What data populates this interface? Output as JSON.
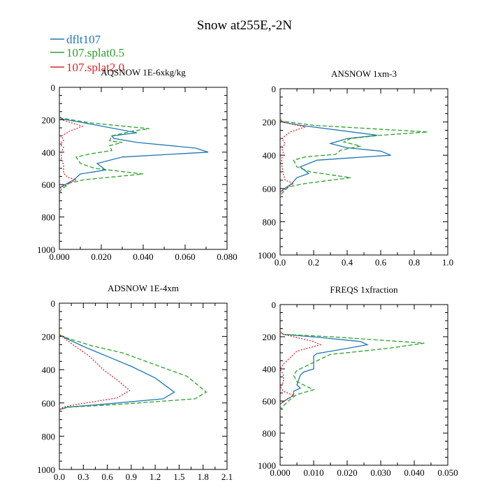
{
  "figure_title": "Snow at255E,-2N",
  "legend": [
    {
      "label": "dflt107",
      "color": "#1f77b4",
      "dash": "solid"
    },
    {
      "label": "107.splat0.5",
      "color": "#2ca02c",
      "dash": "dashed"
    },
    {
      "label": "107.splat2.0",
      "color": "#d62728",
      "dash": "dotted"
    }
  ],
  "chart_data": [
    {
      "type": "line",
      "title": "AQSNOW  1E-6xkg/kg",
      "xlim": [
        0,
        0.08
      ],
      "ylim": [
        1000,
        0
      ],
      "xticks": [
        0,
        0.02,
        0.04,
        0.06,
        0.08
      ],
      "xtick_labels": [
        "0.000",
        "0.020",
        "0.040",
        "0.060",
        "0.080"
      ],
      "yticks": [
        0,
        200,
        400,
        600,
        800,
        1000
      ],
      "ytick_labels": [
        "0",
        "200",
        "400",
        "600",
        "800",
        "1000"
      ],
      "series": [
        {
          "name": "dflt107",
          "points": [
            [
              0,
              180
            ],
            [
              0.001,
              195
            ],
            [
              0.01,
              215
            ],
            [
              0.037,
              280
            ],
            [
              0.025,
              300
            ],
            [
              0.026,
              315
            ],
            [
              0.037,
              340
            ],
            [
              0.065,
              375
            ],
            [
              0.071,
              400
            ],
            [
              0.03,
              430
            ],
            [
              0.018,
              470
            ],
            [
              0.022,
              510
            ],
            [
              0.01,
              535
            ],
            [
              0.007,
              570
            ],
            [
              0.002,
              605
            ],
            [
              0,
              620
            ]
          ]
        },
        {
          "name": "107.splat0.5",
          "points": [
            [
              0,
              180
            ],
            [
              0.001,
              190
            ],
            [
              0.015,
              220
            ],
            [
              0.043,
              255
            ],
            [
              0.035,
              270
            ],
            [
              0.025,
              300
            ],
            [
              0.024,
              330
            ],
            [
              0.03,
              340
            ],
            [
              0.024,
              360
            ],
            [
              0.025,
              390
            ],
            [
              0.015,
              410
            ],
            [
              0.008,
              430
            ],
            [
              0.01,
              470
            ],
            [
              0.017,
              500
            ],
            [
              0.04,
              535
            ],
            [
              0.012,
              570
            ],
            [
              0.005,
              590
            ],
            [
              0.001,
              630
            ],
            [
              0,
              650
            ]
          ]
        },
        {
          "name": "107.splat2.0",
          "points": [
            [
              0,
              180
            ],
            [
              0.001,
              200
            ],
            [
              0.011,
              240
            ],
            [
              0.005,
              270
            ],
            [
              0.001,
              300
            ],
            [
              0.002,
              330
            ],
            [
              0,
              350
            ],
            [
              0.002,
              370
            ],
            [
              0.001,
              400
            ],
            [
              0.001,
              440
            ],
            [
              0.002,
              480
            ],
            [
              0.002,
              530
            ],
            [
              0.004,
              555
            ],
            [
              0.008,
              570
            ],
            [
              0.005,
              590
            ],
            [
              0.002,
              610
            ],
            [
              0,
              625
            ]
          ]
        }
      ]
    },
    {
      "type": "line",
      "title": "ANSNOW  1xm-3",
      "xlim": [
        0,
        1.0
      ],
      "ylim": [
        1000,
        0
      ],
      "xticks": [
        0,
        0.2,
        0.4,
        0.6,
        0.8,
        1.0
      ],
      "xtick_labels": [
        "0.0",
        "0.2",
        "0.4",
        "0.6",
        "0.8",
        "1.0"
      ],
      "yticks": [
        0,
        200,
        400,
        600,
        800,
        1000
      ],
      "ytick_labels": [
        "0",
        "200",
        "400",
        "600",
        "800",
        "1000"
      ],
      "series": [
        {
          "name": "dflt107",
          "points": [
            [
              0,
              180
            ],
            [
              0.01,
              200
            ],
            [
              0.12,
              220
            ],
            [
              0.58,
              280
            ],
            [
              0.4,
              300
            ],
            [
              0.3,
              330
            ],
            [
              0.4,
              355
            ],
            [
              0.6,
              375
            ],
            [
              0.66,
              400
            ],
            [
              0.22,
              430
            ],
            [
              0.12,
              470
            ],
            [
              0.17,
              510
            ],
            [
              0.1,
              535
            ],
            [
              0.07,
              570
            ],
            [
              0.02,
              605
            ],
            [
              0,
              620
            ]
          ]
        },
        {
          "name": "107.splat0.5",
          "points": [
            [
              0,
              180
            ],
            [
              0.01,
              195
            ],
            [
              0.2,
              220
            ],
            [
              0.88,
              260
            ],
            [
              0.6,
              280
            ],
            [
              0.42,
              300
            ],
            [
              0.38,
              320
            ],
            [
              0.48,
              345
            ],
            [
              0.36,
              370
            ],
            [
              0.33,
              395
            ],
            [
              0.15,
              410
            ],
            [
              0.08,
              430
            ],
            [
              0.1,
              470
            ],
            [
              0.18,
              500
            ],
            [
              0.42,
              535
            ],
            [
              0.15,
              570
            ],
            [
              0.05,
              590
            ],
            [
              0.01,
              630
            ],
            [
              0,
              650
            ]
          ]
        },
        {
          "name": "107.splat2.0",
          "points": [
            [
              0,
              180
            ],
            [
              0.01,
              200
            ],
            [
              0.15,
              230
            ],
            [
              0.06,
              260
            ],
            [
              0.01,
              300
            ],
            [
              0.03,
              330
            ],
            [
              0.01,
              360
            ],
            [
              0.02,
              390
            ],
            [
              0.01,
              420
            ],
            [
              0.01,
              460
            ],
            [
              0.02,
              520
            ],
            [
              0.03,
              550
            ],
            [
              0.08,
              570
            ],
            [
              0.05,
              590
            ],
            [
              0.02,
              610
            ],
            [
              0,
              625
            ]
          ]
        }
      ]
    },
    {
      "type": "line",
      "title": "ADSNOW  1E-4xm",
      "xlim": [
        0,
        2.1
      ],
      "ylim": [
        1000,
        0
      ],
      "xticks": [
        0,
        0.3,
        0.6,
        0.9,
        1.2,
        1.5,
        1.8,
        2.1
      ],
      "xtick_labels": [
        "0.0",
        "0.3",
        "0.6",
        "0.9",
        "1.2",
        "1.5",
        "1.8",
        "2.1"
      ],
      "yticks": [
        0,
        200,
        400,
        600,
        800,
        1000
      ],
      "ytick_labels": [
        "0",
        "200",
        "400",
        "600",
        "800",
        "1000"
      ],
      "series": [
        {
          "name": "dflt107",
          "points": [
            [
              0,
              190
            ],
            [
              0.08,
              210
            ],
            [
              0.3,
              260
            ],
            [
              0.6,
              320
            ],
            [
              0.9,
              380
            ],
            [
              1.2,
              450
            ],
            [
              1.44,
              535
            ],
            [
              1.3,
              575
            ],
            [
              0.5,
              610
            ],
            [
              0.1,
              625
            ],
            [
              0,
              640
            ]
          ]
        },
        {
          "name": "107.splat0.5",
          "points": [
            [
              0,
              190
            ],
            [
              0.1,
              210
            ],
            [
              0.4,
              255
            ],
            [
              0.8,
              300
            ],
            [
              1.2,
              370
            ],
            [
              1.6,
              440
            ],
            [
              1.84,
              535
            ],
            [
              1.7,
              575
            ],
            [
              0.7,
              610
            ],
            [
              0.12,
              625
            ],
            [
              0,
              640
            ]
          ]
        },
        {
          "name": "107.splat2.0",
          "points": [
            [
              0,
              190
            ],
            [
              0.06,
              210
            ],
            [
              0.2,
              260
            ],
            [
              0.38,
              320
            ],
            [
              0.55,
              400
            ],
            [
              0.72,
              460
            ],
            [
              0.88,
              525
            ],
            [
              0.72,
              570
            ],
            [
              0.2,
              610
            ],
            [
              0.05,
              625
            ],
            [
              0,
              640
            ]
          ]
        }
      ]
    },
    {
      "type": "line",
      "title": "FREQS  1xfraction",
      "xlim": [
        0,
        0.05
      ],
      "ylim": [
        1000,
        0
      ],
      "xticks": [
        0,
        0.01,
        0.02,
        0.03,
        0.04,
        0.05
      ],
      "xtick_labels": [
        "0.000",
        "0.010",
        "0.020",
        "0.030",
        "0.040",
        "0.050"
      ],
      "yticks": [
        0,
        200,
        400,
        600,
        800,
        1000
      ],
      "ytick_labels": [
        "0",
        "200",
        "400",
        "600",
        "800",
        "1000"
      ],
      "series": [
        {
          "name": "dflt107",
          "points": [
            [
              0,
              170
            ],
            [
              0.001,
              185
            ],
            [
              0.012,
              205
            ],
            [
              0.024,
              230
            ],
            [
              0.026,
              250
            ],
            [
              0.018,
              280
            ],
            [
              0.011,
              305
            ],
            [
              0.01,
              320
            ],
            [
              0.01,
              350
            ],
            [
              0.01,
              400
            ],
            [
              0.007,
              420
            ],
            [
              0.006,
              440
            ],
            [
              0.005,
              500
            ],
            [
              0.006,
              520
            ],
            [
              0.004,
              540
            ],
            [
              0.004,
              565
            ],
            [
              0.002,
              590
            ],
            [
              0,
              620
            ]
          ]
        },
        {
          "name": "107.splat0.5",
          "points": [
            [
              0,
              170
            ],
            [
              0.001,
              185
            ],
            [
              0.015,
              200
            ],
            [
              0.043,
              240
            ],
            [
              0.033,
              270
            ],
            [
              0.022,
              295
            ],
            [
              0.015,
              310
            ],
            [
              0.012,
              340
            ],
            [
              0.008,
              380
            ],
            [
              0.005,
              410
            ],
            [
              0.004,
              440
            ],
            [
              0.005,
              480
            ],
            [
              0.01,
              530
            ],
            [
              0.005,
              560
            ],
            [
              0.003,
              590
            ],
            [
              0.001,
              630
            ],
            [
              0,
              650
            ]
          ]
        },
        {
          "name": "107.splat2.0",
          "points": [
            [
              0,
              170
            ],
            [
              0.001,
              185
            ],
            [
              0.01,
              230
            ],
            [
              0.012,
              250
            ],
            [
              0.005,
              290
            ],
            [
              0.003,
              330
            ],
            [
              0.001,
              370
            ],
            [
              0,
              400
            ],
            [
              0.001,
              440
            ],
            [
              0.001,
              480
            ],
            [
              0,
              510
            ],
            [
              0.001,
              540
            ],
            [
              0.004,
              565
            ],
            [
              0.002,
              590
            ],
            [
              0,
              615
            ]
          ]
        }
      ]
    }
  ]
}
